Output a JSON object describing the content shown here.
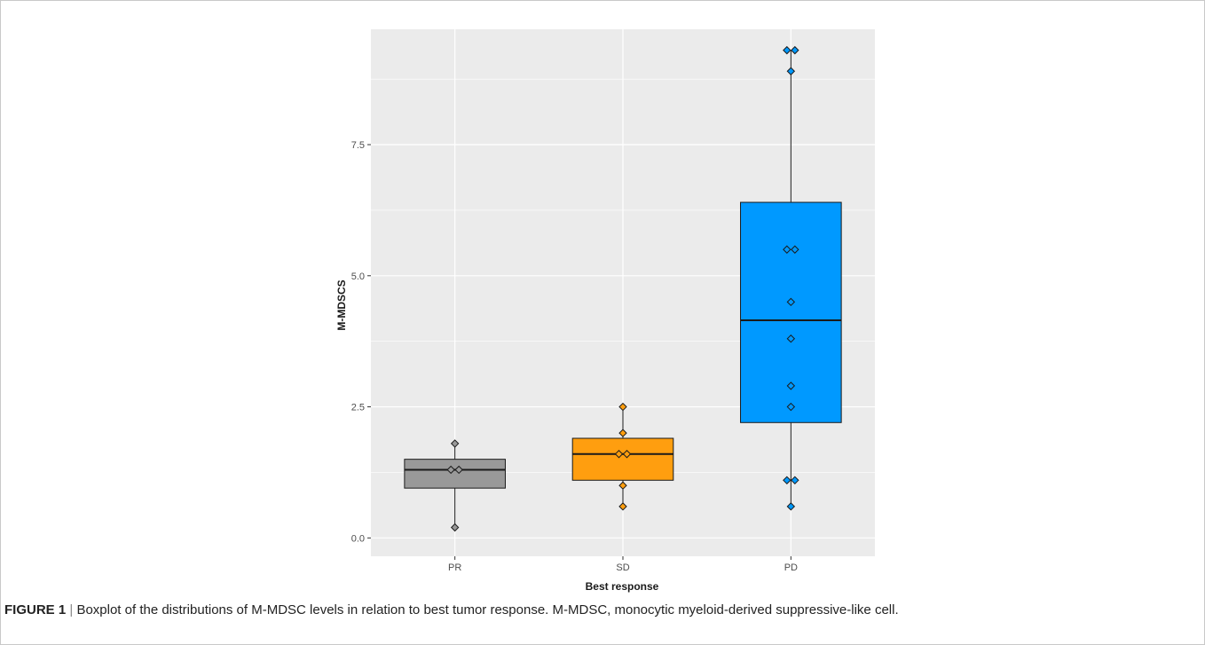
{
  "chart_data": {
    "type": "boxplot",
    "xlabel": "Best response",
    "ylabel": "M-MDSCS",
    "ylim": [
      -0.35,
      9.7
    ],
    "yticks": [
      0.0,
      2.5,
      5.0,
      7.5
    ],
    "ytick_labels": [
      "0.0",
      "2.5",
      "5.0",
      "7.5"
    ],
    "categories": [
      "PR",
      "SD",
      "PD"
    ],
    "grid": true,
    "background": "#ebebeb",
    "gridline_color": "#ffffff",
    "boxes": [
      {
        "category": "PR",
        "fill": "#999999",
        "whisker_low": 0.2,
        "q1": 0.95,
        "median": 1.3,
        "q3": 1.5,
        "whisker_high": 1.8,
        "points": [
          0.2,
          1.3,
          1.3,
          1.8
        ]
      },
      {
        "category": "SD",
        "fill": "#ff9e0f",
        "whisker_low": 0.6,
        "q1": 1.1,
        "median": 1.6,
        "q3": 1.9,
        "whisker_high": 2.5,
        "points": [
          0.6,
          1.0,
          1.6,
          1.6,
          2.0,
          2.5
        ]
      },
      {
        "category": "PD",
        "fill": "#0099ff",
        "whisker_low": 0.6,
        "q1": 2.2,
        "median": 4.15,
        "q3": 6.4,
        "whisker_high": 9.3,
        "points": [
          0.6,
          1.1,
          1.1,
          2.5,
          2.9,
          3.8,
          4.5,
          5.5,
          5.5,
          8.9,
          9.3,
          9.3
        ]
      }
    ]
  },
  "caption": {
    "label": "FIGURE 1",
    "separator": "|",
    "text": "Boxplot of the distributions of M-MDSC levels in relation to best tumor response. M-MDSC, monocytic myeloid-derived suppressive-like cell."
  }
}
